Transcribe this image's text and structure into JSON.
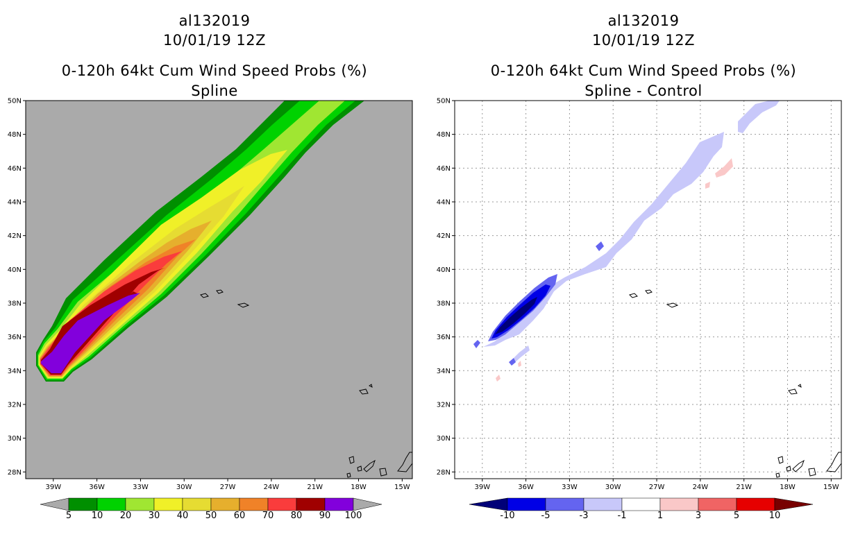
{
  "left_panel": {
    "storm_id": "al132019",
    "datetime": "10/01/19 12Z",
    "product": "0-120h 64kt Cum Wind Speed Probs (%)",
    "subtitle": "Spline",
    "background_color": "#aaaaaa",
    "colorbar": {
      "labels": [
        "5",
        "10",
        "20",
        "30",
        "40",
        "50",
        "60",
        "70",
        "80",
        "90",
        "100"
      ],
      "colors": [
        "#008f00",
        "#00d200",
        "#a0e632",
        "#f0f028",
        "#e6dc32",
        "#e6af2d",
        "#f08228",
        "#fa3c3c",
        "#a00000",
        "#8200dc"
      ],
      "end_color": "#aaaaaa"
    }
  },
  "right_panel": {
    "storm_id": "al132019",
    "datetime": "10/01/19 12Z",
    "product": "0-120h 64kt Cum Wind Speed Probs (%)",
    "subtitle": "Spline - Control",
    "background_color": "#ffffff",
    "colorbar": {
      "labels": [
        "-10",
        "-5",
        "-3",
        "-1",
        "1",
        "3",
        "5",
        "10"
      ],
      "colors": [
        "#0000e6",
        "#6464f0",
        "#c8c8fa",
        "#ffffff",
        "#fac8c8",
        "#f06464",
        "#e60000"
      ],
      "low_end_color": "#000078",
      "high_end_color": "#780000"
    }
  },
  "map": {
    "lat_labels": [
      "50N",
      "48N",
      "46N",
      "44N",
      "42N",
      "40N",
      "38N",
      "36N",
      "34N",
      "32N",
      "30N",
      "28N"
    ],
    "lon_labels": [
      "39W",
      "36W",
      "33W",
      "30W",
      "27W",
      "24W",
      "21W",
      "18W",
      "15W"
    ],
    "lat_range": [
      27.6,
      50
    ],
    "lon_range": [
      -40.9,
      -14.3
    ]
  }
}
